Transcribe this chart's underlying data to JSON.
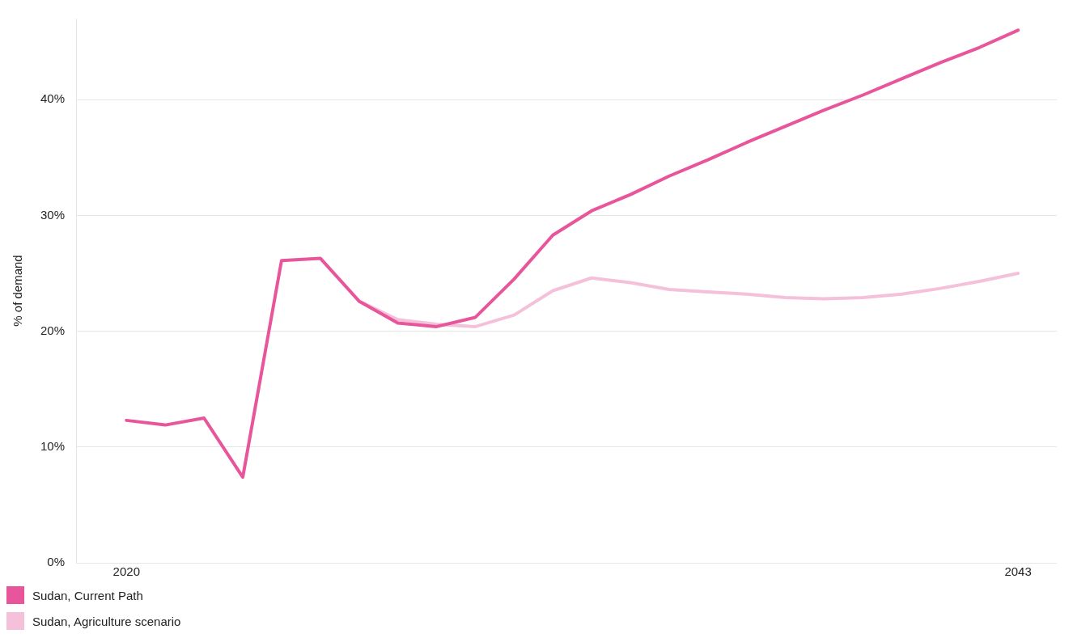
{
  "chart_data": {
    "type": "line",
    "ylabel": "% of demand",
    "x": [
      2020,
      2021,
      2022,
      2023,
      2024,
      2025,
      2026,
      2027,
      2028,
      2029,
      2030,
      2031,
      2032,
      2033,
      2034,
      2035,
      2036,
      2037,
      2038,
      2039,
      2040,
      2041,
      2042,
      2043
    ],
    "series": [
      {
        "name": "Sudan, Current Path",
        "color": "#e8559a",
        "values": [
          12.3,
          11.9,
          12.5,
          7.4,
          26.1,
          26.3,
          22.6,
          20.7,
          20.4,
          21.2,
          24.5,
          28.3,
          30.4,
          31.8,
          33.4,
          34.8,
          36.3,
          37.7,
          39.1,
          40.4,
          41.8,
          43.2,
          44.5,
          46.0
        ]
      },
      {
        "name": "Sudan, Agriculture scenario",
        "color": "#f5c0d9",
        "values": [
          null,
          null,
          null,
          null,
          null,
          null,
          22.6,
          21.0,
          20.6,
          20.4,
          21.4,
          23.5,
          24.6,
          24.2,
          23.6,
          23.4,
          23.2,
          22.9,
          22.8,
          22.9,
          23.2,
          23.7,
          24.3,
          25.0
        ]
      }
    ],
    "xlim": [
      2018.7,
      2044
    ],
    "xticks": [
      2020,
      2043
    ],
    "ylim": [
      0,
      47
    ],
    "yticks": [
      {
        "value": 0,
        "label": "0%"
      },
      {
        "value": 10,
        "label": "10%"
      },
      {
        "value": 20,
        "label": "20%"
      },
      {
        "value": 30,
        "label": "30%"
      },
      {
        "value": 40,
        "label": "40%"
      }
    ],
    "grid": "y",
    "legend": "bottom left",
    "marker": "none",
    "line_style": "solid"
  }
}
